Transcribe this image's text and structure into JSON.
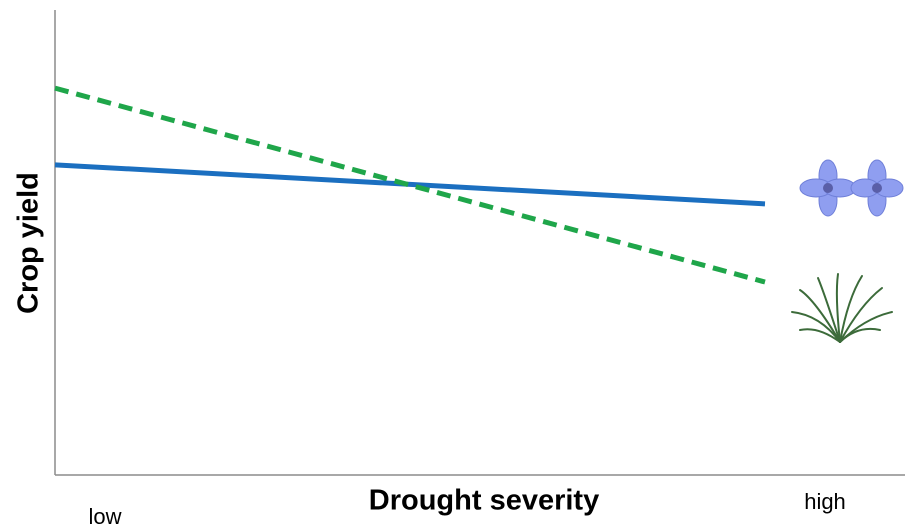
{
  "chart_data": {
    "type": "line",
    "x_label": "Drought severity",
    "y_label": "Crop yield",
    "categories": [
      "low",
      "high"
    ],
    "ylim": [
      0,
      100
    ],
    "series": [
      {
        "color": "#1b6fc0",
        "dashed": false,
        "values": [
          66.7,
          58.3
        ]
      },
      {
        "color": "#1fa64a",
        "dashed": true,
        "values": [
          83.2,
          41.5
        ]
      }
    ]
  }
}
